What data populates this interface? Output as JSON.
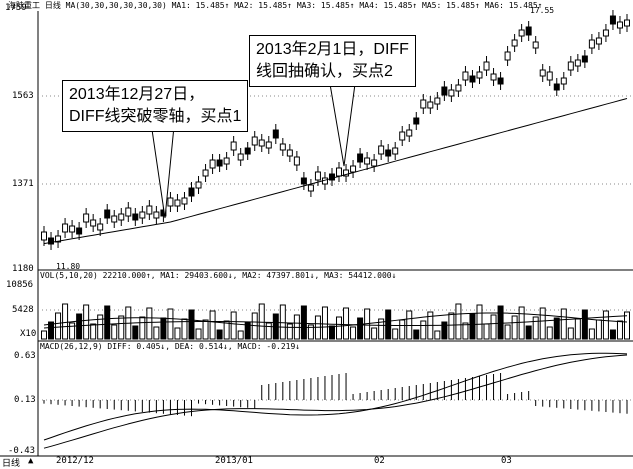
{
  "header": {
    "price_legend": "海陆重工 日线 MA(30,30,30,30,30,30) MA1: 15.485↑ MA2: 15.485↑ MA3: 15.485↑ MA4: 15.485↑ MA5: 15.485↑ MA6: 15.485↑",
    "volume_legend": "VOL(5,10,20)  22210.000↑, MA1: 29403.600↓, MA2: 47397.801↓, MA3: 54412.000↓",
    "macd_legend": "MACD(26,12,9)  DIFF: 0.405↓, DEA: 0.514↓, MACD: -0.219↓"
  },
  "price_axis": {
    "ticks": [
      "1759",
      "1563",
      "1371",
      "1180"
    ]
  },
  "volume_axis": {
    "ticks": [
      "10856",
      "5428",
      "X10"
    ]
  },
  "macd_axis": {
    "ticks": [
      "0.63",
      "0.13",
      "-0.43"
    ]
  },
  "price_markers": {
    "high": "17.55",
    "low": "11.80"
  },
  "callouts": {
    "buy1_line1": "2013年12月27日，",
    "buy1_line2": "DIFF线突破零轴，买点1",
    "buy2_line1": "2013年2月1日，DIFF",
    "buy2_line2": "线回抽确认，买点2"
  },
  "bottom_bar": {
    "period": "日线",
    "dates": [
      "2012/12",
      "2013/01",
      "02",
      "03"
    ]
  },
  "colors": {
    "up": "#000000",
    "down": "#000000",
    "background": "#ffffff"
  }
}
